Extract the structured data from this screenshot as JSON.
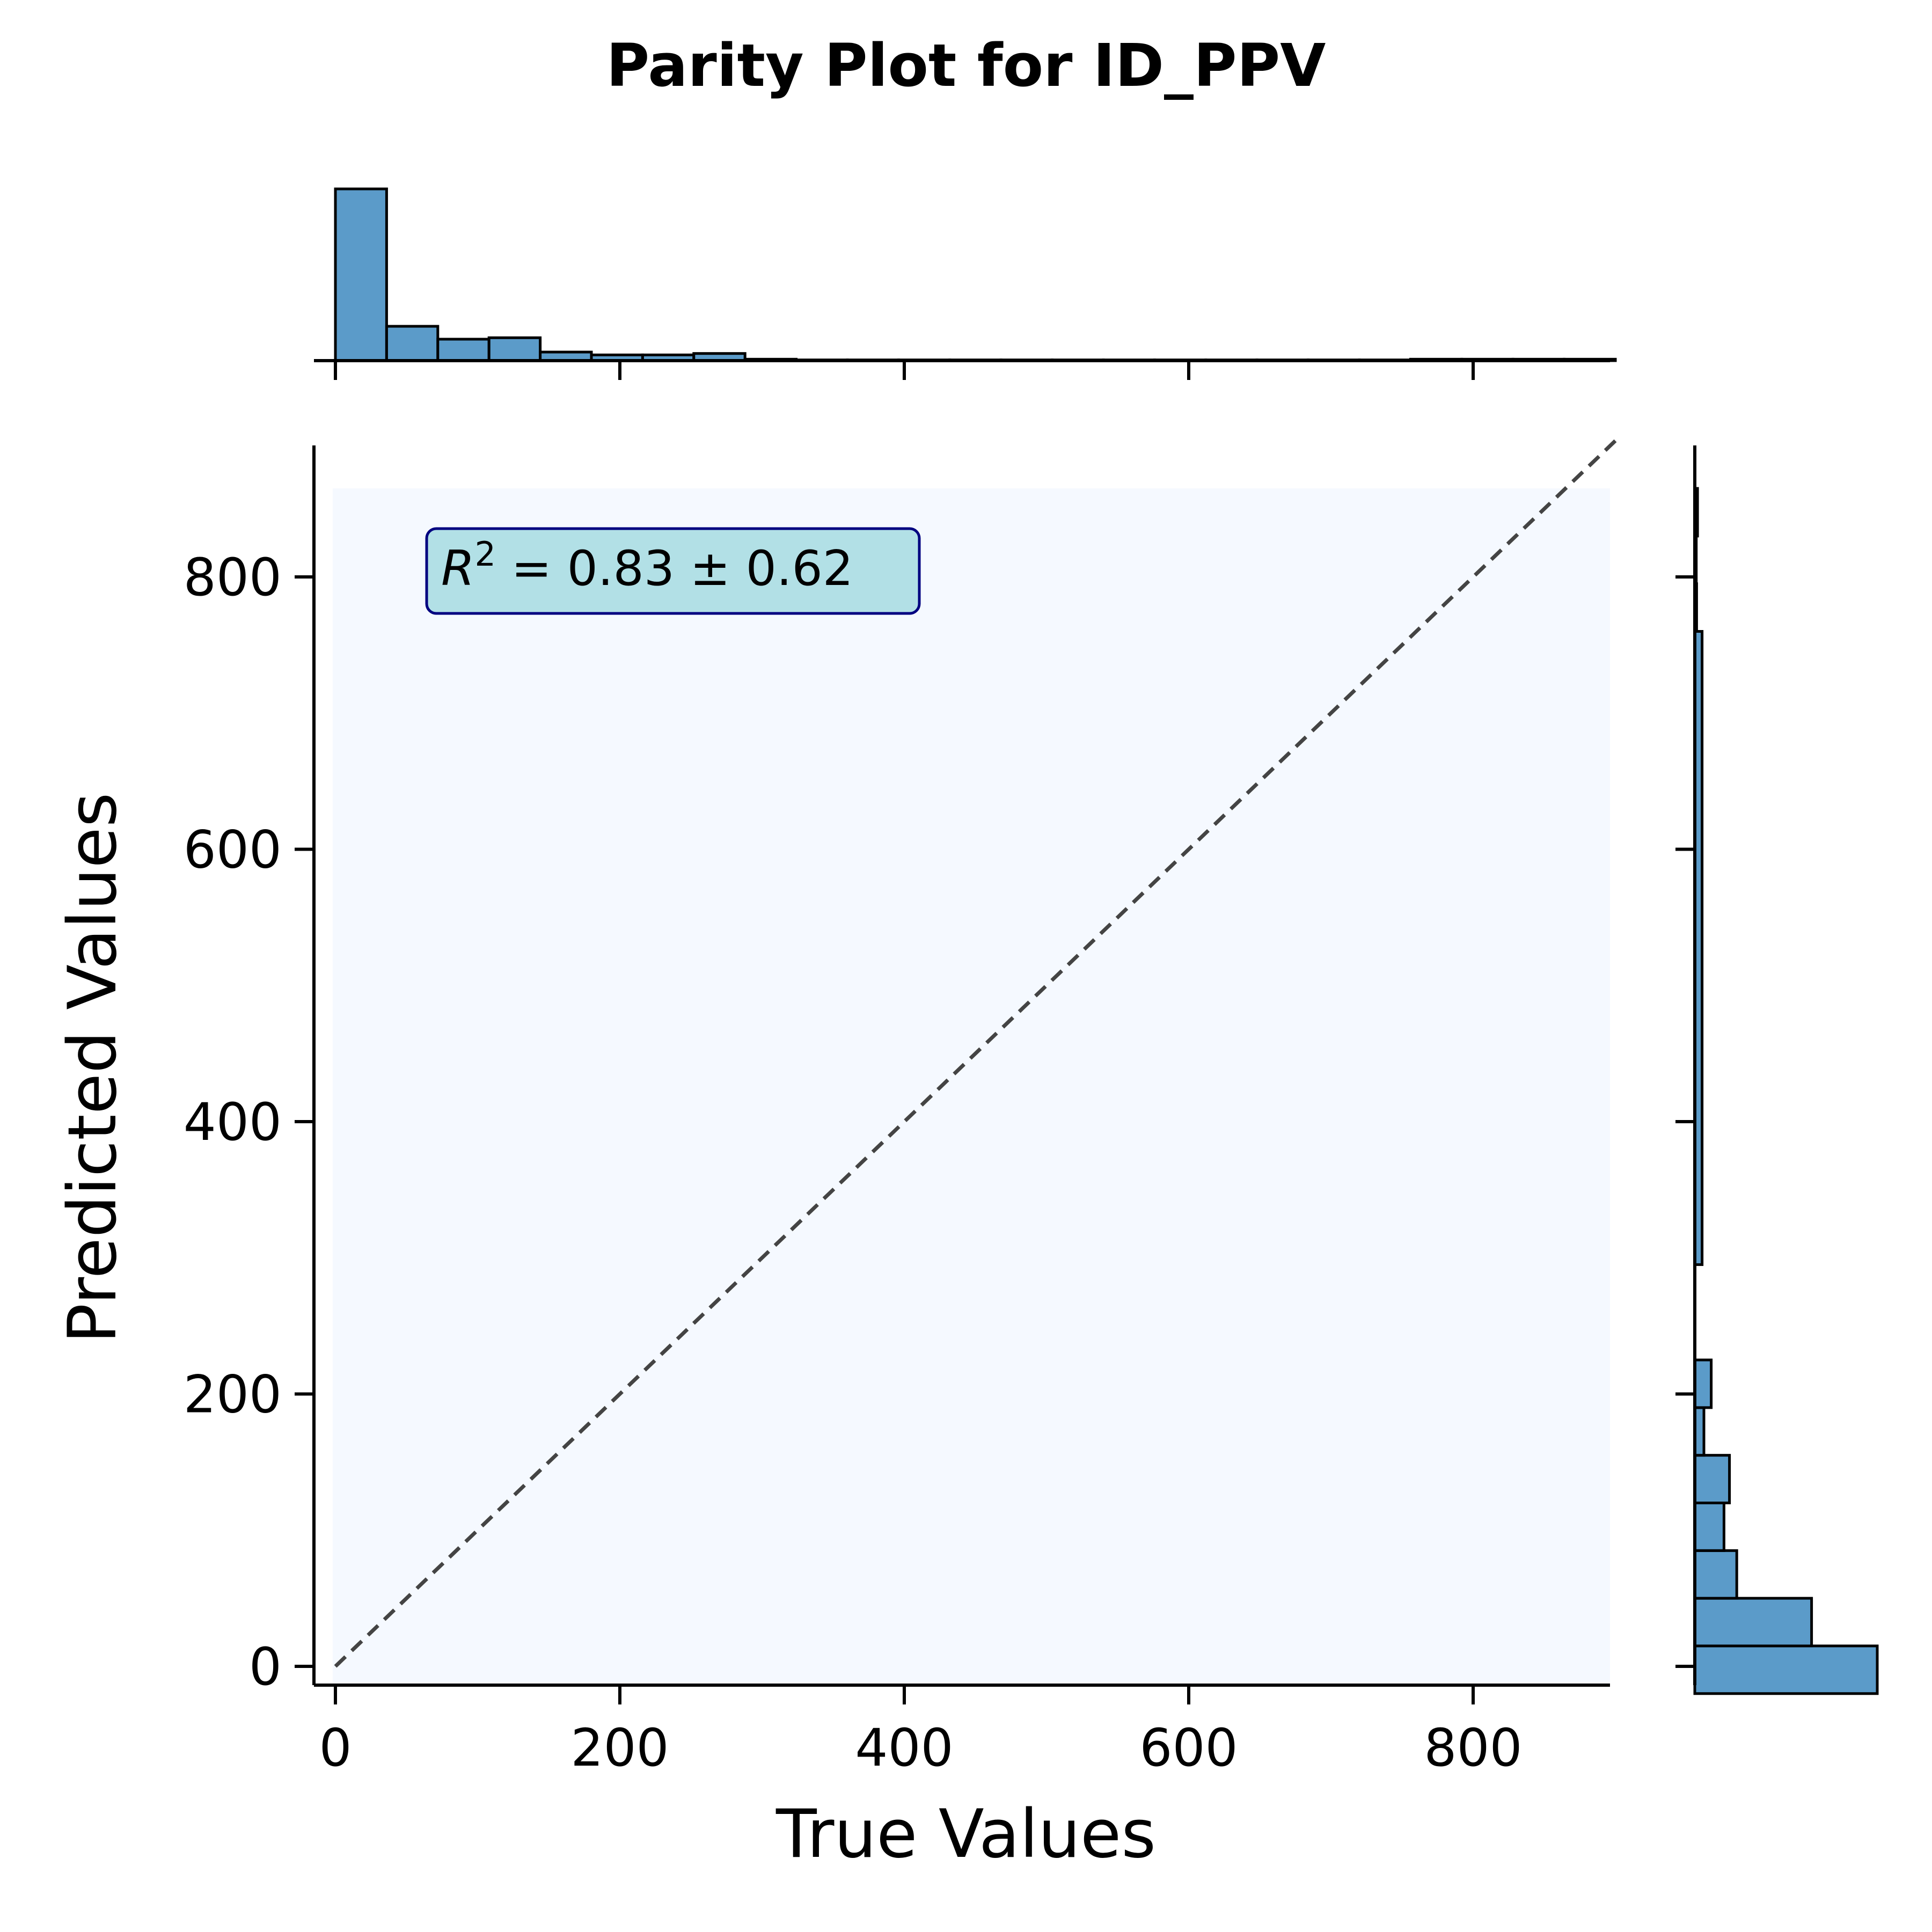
{
  "chart_data": {
    "type": "scatter",
    "title": "Parity Plot for ID_PPV",
    "xlabel": "True Values",
    "ylabel": "Predicted Values",
    "xlim": [
      -20,
      900
    ],
    "ylim": [
      -20,
      900
    ],
    "xticks": [
      0,
      200,
      400,
      600,
      800
    ],
    "yticks": [
      0,
      200,
      400,
      600,
      800
    ],
    "xtick_labels": [
      "0",
      "200",
      "400",
      "600",
      "800"
    ],
    "ytick_labels": [
      "0",
      "200",
      "400",
      "600",
      "800"
    ],
    "annotation": {
      "r2_symbol": "R",
      "r2_exponent": "2",
      "r2_value": " = 0.83 ± 0.62"
    },
    "parity_line": {
      "from": [
        0,
        0
      ],
      "to": [
        900,
        900
      ],
      "style": "dashed",
      "color": "#444444"
    },
    "colors": {
      "bar_fill": "#5b9bc9",
      "bar_edge": "#000000",
      "plot_background": "#f5f9ff",
      "annotation_fill": "#b2e0e6",
      "annotation_edge": "#000080"
    },
    "top_histogram": {
      "bin_edges": [
        0,
        36,
        72,
        108,
        144,
        180,
        216,
        252,
        288,
        324,
        360,
        396,
        432,
        468,
        504,
        540,
        576,
        612,
        648,
        684,
        720,
        756,
        792,
        828,
        864,
        900
      ],
      "counts": [
        120,
        24,
        15,
        16,
        6,
        4,
        4,
        5,
        1,
        0.5,
        0.5,
        0.5,
        0.5,
        0.5,
        0.5,
        0.5,
        0.5,
        0.5,
        0.5,
        0.5,
        0.5,
        1,
        1,
        1,
        1
      ],
      "max_count": 120
    },
    "right_histogram": {
      "bin_edges": [
        -20,
        15,
        50,
        85,
        120,
        155,
        190,
        225,
        260,
        295,
        760,
        795,
        830,
        865
      ],
      "counts": [
        100,
        64,
        23,
        16,
        19,
        5,
        9,
        0,
        0,
        4,
        1,
        0.8,
        1.5
      ],
      "max_count": 100
    }
  }
}
